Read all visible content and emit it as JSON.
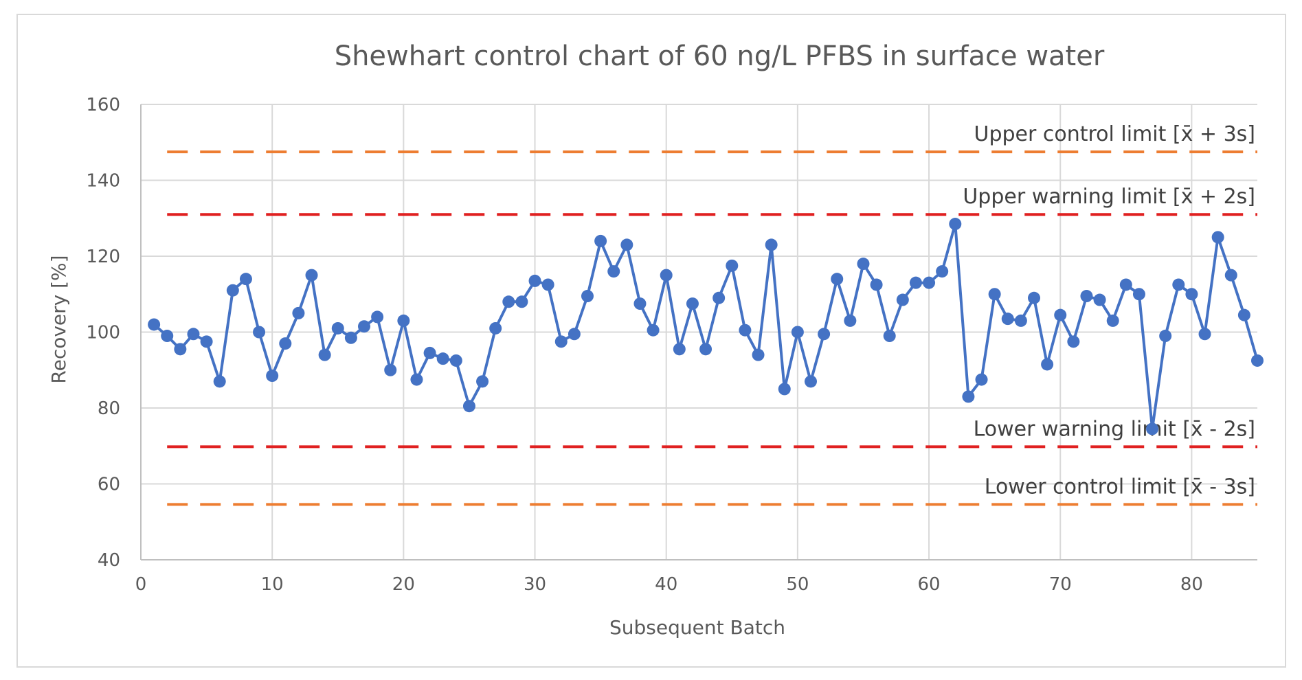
{
  "chart_data": {
    "type": "line",
    "title": "Shewhart control chart of 60 ng/L PFBS in surface water",
    "xlabel": "Subsequent Batch",
    "ylabel": "Recovery [%]",
    "xlim": [
      0,
      85
    ],
    "ylim": [
      40,
      160
    ],
    "xticks": [
      0,
      10,
      20,
      30,
      40,
      50,
      60,
      70,
      80
    ],
    "yticks": [
      40,
      60,
      80,
      100,
      120,
      140,
      160
    ],
    "grid": true,
    "series": [
      {
        "color": "#4472c4",
        "x": [
          1,
          2,
          3,
          4,
          5,
          6,
          7,
          8,
          9,
          10,
          11,
          12,
          13,
          14,
          15,
          16,
          17,
          18,
          19,
          20,
          21,
          22,
          23,
          24,
          25,
          26,
          27,
          28,
          29,
          30,
          31,
          32,
          33,
          34,
          35,
          36,
          37,
          38,
          39,
          40,
          41,
          42,
          43,
          44,
          45,
          46,
          47,
          48,
          49,
          50,
          51,
          52,
          53,
          54,
          55,
          56,
          57,
          58,
          59,
          60,
          61,
          62,
          63,
          64,
          65,
          66,
          67,
          68,
          69,
          70,
          71,
          72,
          73,
          74,
          75,
          76,
          77,
          78,
          79,
          80,
          81,
          82,
          83,
          84,
          85
        ],
        "values": [
          102,
          99,
          95.5,
          99.5,
          97.5,
          87,
          111,
          114,
          100,
          88.5,
          97,
          105,
          115,
          94,
          101,
          98.5,
          101.5,
          104,
          90,
          103,
          87.5,
          94.5,
          93,
          92.5,
          80.5,
          87,
          101,
          108,
          108,
          113.5,
          112.5,
          97.5,
          99.5,
          109.5,
          124,
          116,
          123,
          107.5,
          100.5,
          115,
          95.5,
          107.5,
          95.5,
          109,
          117.5,
          100.5,
          94,
          123,
          85,
          100,
          87,
          99.5,
          114,
          103,
          118,
          112.5,
          99,
          108.5,
          113,
          113,
          116,
          128.5,
          83,
          87.5,
          110,
          103.5,
          103,
          109,
          91.5,
          104.5,
          97.5,
          109.5,
          108.5,
          103,
          112.5,
          110,
          74.5,
          99,
          112.5,
          110,
          99.5,
          125,
          115,
          104.5,
          92.5
        ]
      }
    ],
    "limits": [
      {
        "label": "Upper control limit [x̄ + 3s]",
        "value": 147.5,
        "color": "#ed7d31",
        "x_start": 2,
        "x_end": 85
      },
      {
        "label": "Upper warning limit [x̄ + 2s]",
        "value": 131,
        "color": "#e02020",
        "x_start": 2,
        "x_end": 85
      },
      {
        "label": "Lower warning limit [x̄ - 2s]",
        "value": 69.8,
        "color": "#e02020",
        "x_start": 2,
        "x_end": 85
      },
      {
        "label": "Lower control limit [x̄ - 3s]",
        "value": 54.6,
        "color": "#ed7d31",
        "x_start": 2,
        "x_end": 85
      }
    ]
  }
}
